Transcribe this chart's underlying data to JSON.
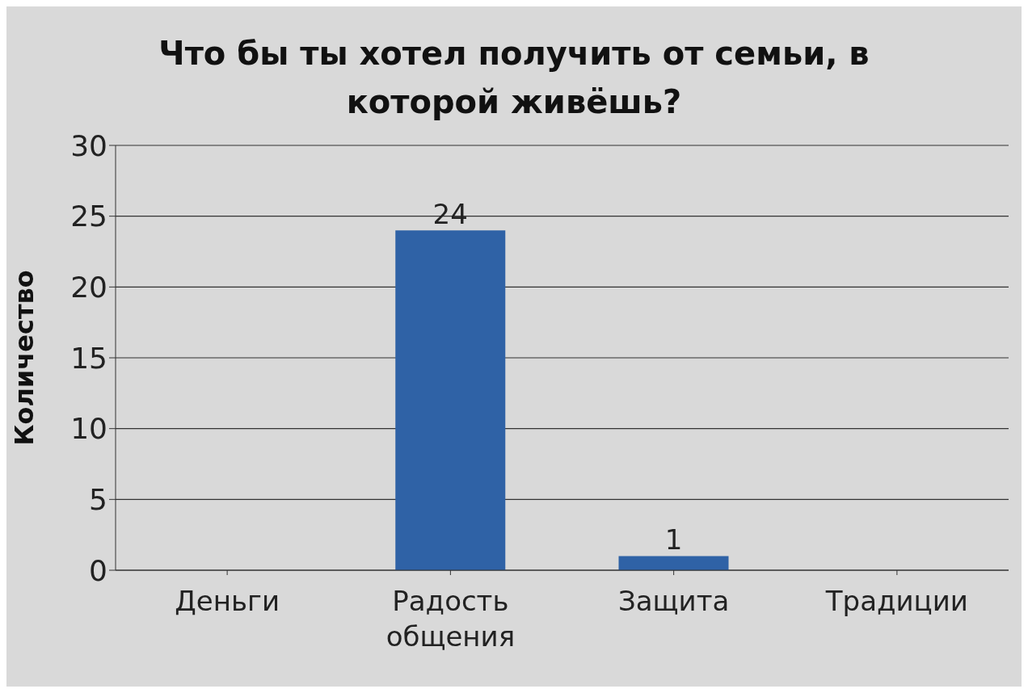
{
  "chart_data": {
    "type": "bar",
    "title": "Что бы ты хотел получить от семьи, в которой живёшь?",
    "ylabel": "Количество",
    "categories": [
      "Деньги",
      "Радость общения",
      "Защита",
      "Традиции"
    ],
    "values": [
      0,
      24,
      1,
      0
    ],
    "value_labels": [
      null,
      "24",
      "1",
      null
    ],
    "color": "#2f62a6",
    "ylim": [
      0,
      30
    ],
    "yticks": [
      0,
      5,
      10,
      15,
      20,
      25,
      30
    ],
    "grid": "y"
  }
}
